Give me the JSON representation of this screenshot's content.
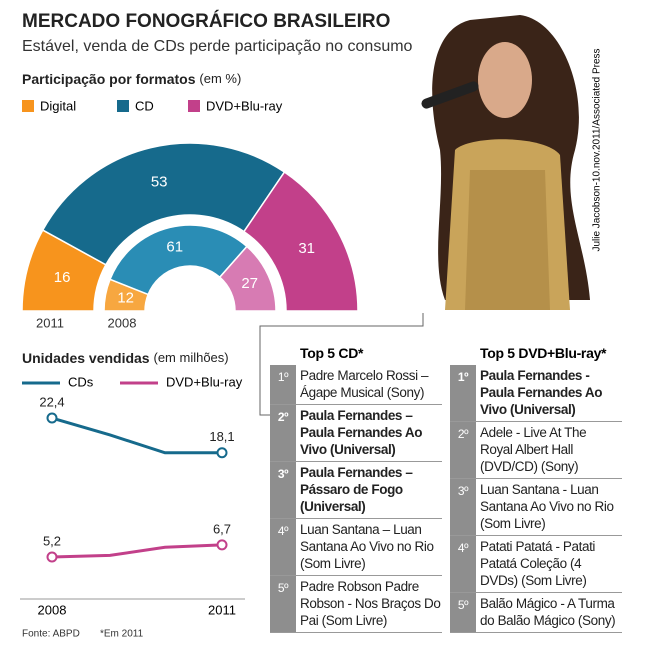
{
  "header": {
    "title": "MERCADO FONOGRÁFICO BRASILEIRO",
    "subtitle": "Estável, venda de CDs perde participação no consumo"
  },
  "photo_credit": "Julie Jacobson-10.nov.2011/Associated Press",
  "chart_data": [
    {
      "type": "semi-donut",
      "title": "Participação por formatos",
      "unit": "(em %)",
      "categories": [
        "Digital",
        "CD",
        "DVD+Blu-ray"
      ],
      "colors": [
        "#f7941d",
        "#166a8c",
        "#c2408a"
      ],
      "rings": [
        {
          "name": "2011",
          "values": [
            16,
            53,
            31
          ],
          "colors": [
            "#f7941d",
            "#166a8c",
            "#c2408a"
          ]
        },
        {
          "name": "2008",
          "values": [
            12,
            61,
            27
          ],
          "colors": [
            "#f7a740",
            "#2a8db5",
            "#d77bb3"
          ]
        }
      ]
    },
    {
      "type": "line",
      "title": "Unidades vendidas",
      "unit": "(em milhões)",
      "categories": [
        "2008",
        null,
        null,
        "2011"
      ],
      "ylim": [
        0,
        25
      ],
      "series": [
        {
          "name": "CDs",
          "color": "#166a8c",
          "values": [
            22.4,
            20.3,
            18.1,
            18.1
          ],
          "value_labels": [
            "22,4",
            null,
            null,
            "18,1"
          ]
        },
        {
          "name": "DVD+Blu-ray",
          "color": "#c2408a",
          "values": [
            5.2,
            5.4,
            6.4,
            6.7
          ],
          "value_labels": [
            "5,2",
            null,
            null,
            "6,7"
          ]
        }
      ]
    }
  ],
  "top5_cd": {
    "title": "Top 5 CD*",
    "items": [
      {
        "rank": "1º",
        "text": "Padre Marcelo Rossi – Ágape Musical (Sony)"
      },
      {
        "rank": "2º",
        "text": "Paula Fernandes – Paula Fernandes Ao Vivo (Universal)"
      },
      {
        "rank": "3º",
        "text": "Paula Fernandes – Pássaro de Fogo (Universal)"
      },
      {
        "rank": "4º",
        "text": "Luan Santana – Luan Santana Ao Vivo no Rio (Som Livre)"
      },
      {
        "rank": "5º",
        "text": "Padre Robson Padre Robson - Nos Braços Do Pai (Som Livre)"
      }
    ]
  },
  "top5_dvd": {
    "title": "Top 5 DVD+Blu-ray*",
    "items": [
      {
        "rank": "1º",
        "text": "Paula Fernandes - Paula Fernandes Ao Vivo (Universal)"
      },
      {
        "rank": "2º",
        "text": "Adele - Live At The Royal Albert Hall (DVD/CD) (Sony)"
      },
      {
        "rank": "3º",
        "text": "Luan Santana - Luan Santana Ao Vivo no Rio (Som Livre)"
      },
      {
        "rank": "4º",
        "text": "Patati Patatá - Patati Patatá Coleção (4 DVDs) (Som Livre)"
      },
      {
        "rank": "5º",
        "text": "Balão Mágico - A Turma do Balão Mágico (Sony)"
      }
    ]
  },
  "footer": {
    "source": "Fonte: ABPD",
    "note": "*Em 2011"
  }
}
